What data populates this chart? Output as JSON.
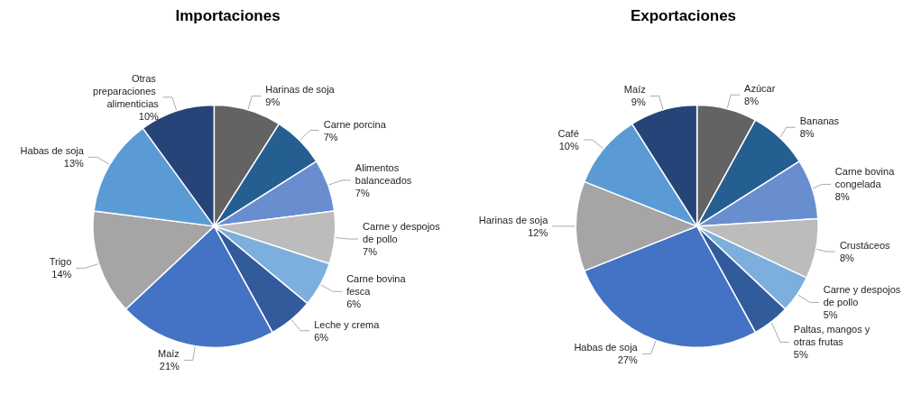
{
  "chart_data": [
    {
      "type": "pie",
      "title": "Importaciones",
      "categories": [
        "Harinas de soja",
        "Carne porcina",
        "Alimentos balanceados",
        "Carne y despojos de pollo",
        "Carne bovina fesca",
        "Leche y crema",
        "Maíz",
        "Trigo",
        "Habas de soja",
        "Otras preparaciones alimenticias"
      ],
      "values": [
        9,
        7,
        7,
        7,
        6,
        6,
        21,
        14,
        13,
        10
      ],
      "value_labels": [
        "9%",
        "7%",
        "7%",
        "7%",
        "6%",
        "6%",
        "21%",
        "14%",
        "13%",
        "10%"
      ],
      "colors": [
        "#636363",
        "#255e91",
        "#698ed0",
        "#bcbcbc",
        "#7cafdd",
        "#325b9c",
        "#4472c4",
        "#a5a5a5",
        "#5b9bd5",
        "#264478"
      ]
    },
    {
      "type": "pie",
      "title": "Exportaciones",
      "categories": [
        "Azúcar",
        "Bananas",
        "Carne bovina congelada",
        "Crustáceos",
        "Carne y despojos de pollo",
        "Paltas, mangos y otras frutas",
        "Habas de soja",
        "Harinas de soja",
        "Café",
        "Maíz"
      ],
      "values": [
        8,
        8,
        8,
        8,
        5,
        5,
        27,
        12,
        10,
        9
      ],
      "value_labels": [
        "8%",
        "8%",
        "8%",
        "8%",
        "5%",
        "5%",
        "27%",
        "12%",
        "10%",
        "9%"
      ],
      "colors": [
        "#636363",
        "#255e91",
        "#698ed0",
        "#bcbcbc",
        "#7cafdd",
        "#325b9c",
        "#4472c4",
        "#a5a5a5",
        "#5b9bd5",
        "#264478"
      ]
    }
  ]
}
